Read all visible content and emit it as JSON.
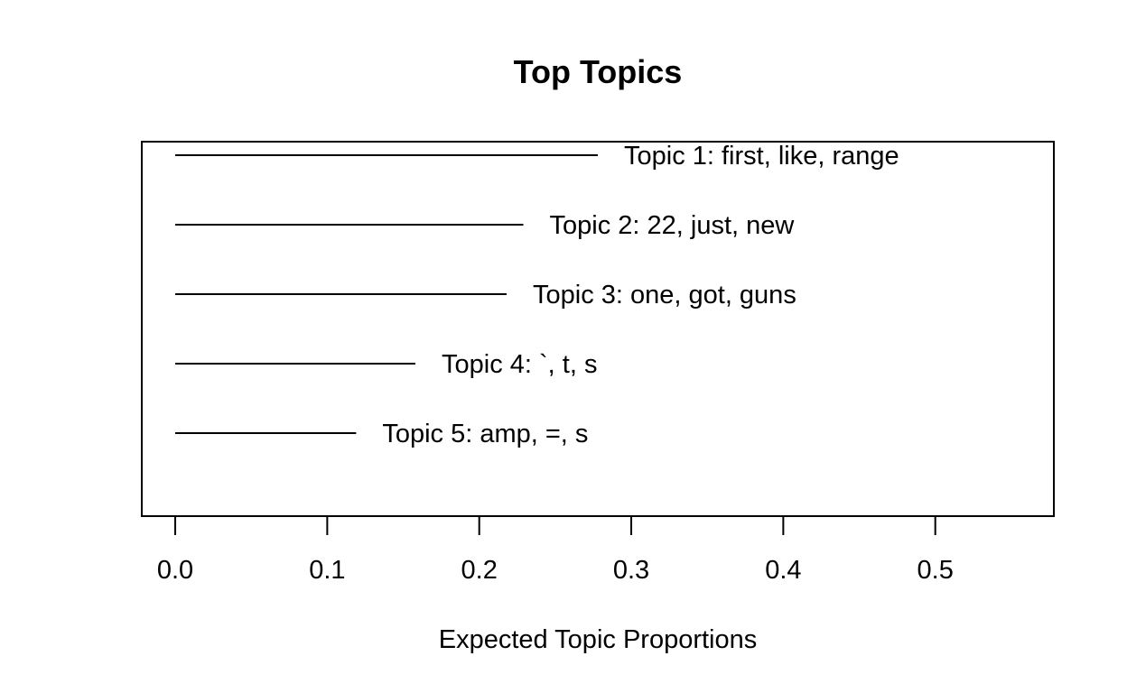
{
  "chart_data": {
    "type": "bar",
    "orientation": "horizontal",
    "title": "Top Topics",
    "xlabel": "Expected Topic Proportions",
    "ylabel": "",
    "xlim": [
      -0.022,
      0.578
    ],
    "x_ticks": [
      "0.0",
      "0.1",
      "0.2",
      "0.3",
      "0.4",
      "0.5"
    ],
    "x_tick_values": [
      0.0,
      0.1,
      0.2,
      0.3,
      0.4,
      0.5
    ],
    "grid": false,
    "legend": "none",
    "categories": [
      "Topic 1: first, like, range",
      "Topic 2: 22, just, new",
      "Topic 3: one, got, guns",
      "Topic 4: `, t, s",
      "Topic 5: amp, =, s"
    ],
    "values": [
      0.278,
      0.229,
      0.218,
      0.158,
      0.119
    ]
  }
}
